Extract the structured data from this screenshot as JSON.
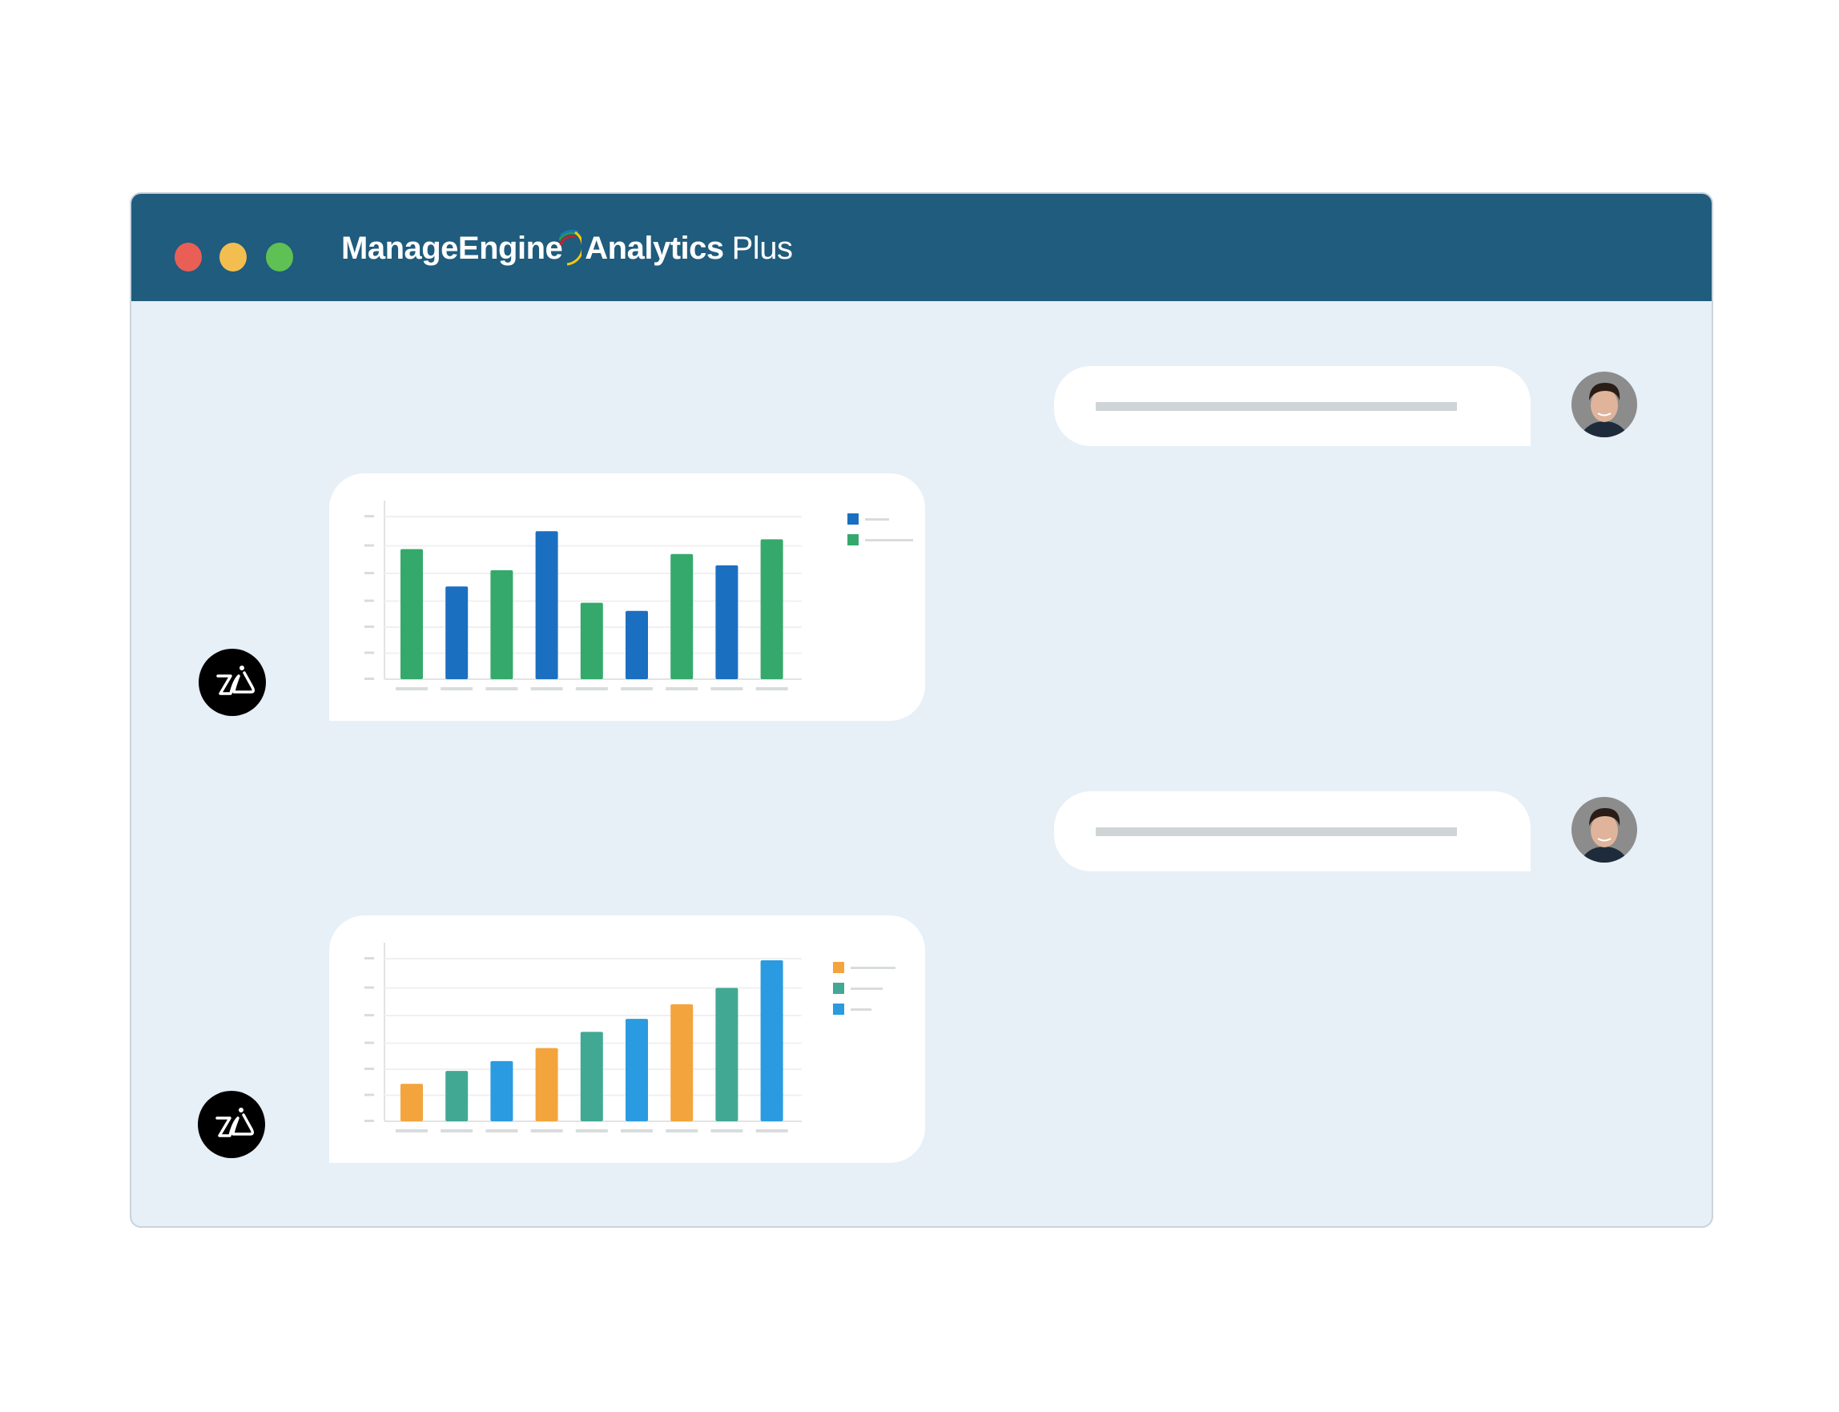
{
  "window": {
    "traffic_lights": {
      "close": "#e95f56",
      "minimize": "#f3be4f",
      "maximize": "#5fc153"
    },
    "title": {
      "brand": "ManageEngine",
      "product": "Analytics",
      "edition": "Plus"
    },
    "titlebar_color": "#1f5c7d",
    "background": "#e7eff7"
  },
  "conversation": [
    {
      "role": "user",
      "avatar": "user-photo"
    },
    {
      "role": "assistant",
      "avatar": "zia-logo",
      "chart_index": 0
    },
    {
      "role": "user",
      "avatar": "user-photo"
    },
    {
      "role": "assistant",
      "avatar": "zia-logo",
      "chart_index": 1
    }
  ],
  "chart_data": [
    {
      "type": "bar",
      "categories": [
        "",
        "",
        "",
        "",
        "",
        "",
        "",
        "",
        ""
      ],
      "values": [
        80,
        57,
        67,
        91,
        47,
        42,
        77,
        70,
        86
      ],
      "bar_colors": [
        "#34a96b",
        "#1b6fc1",
        "#34a96b",
        "#1b6fc1",
        "#34a96b",
        "#1b6fc1",
        "#34a96b",
        "#1b6fc1",
        "#34a96b"
      ],
      "legend": [
        {
          "color": "#1b6fc1"
        },
        {
          "color": "#34a96b"
        }
      ],
      "legend_placement": "top-right",
      "ylim": [
        0,
        100
      ],
      "grid": true
    },
    {
      "type": "bar",
      "categories": [
        "",
        "",
        "",
        "",
        "",
        "",
        "",
        "",
        ""
      ],
      "values": [
        23,
        31,
        37,
        45,
        55,
        63,
        72,
        82,
        99
      ],
      "bar_colors": [
        "#f4a43c",
        "#41a894",
        "#2a9be0",
        "#f4a43c",
        "#41a894",
        "#2a9be0",
        "#f4a43c",
        "#41a894",
        "#2a9be0"
      ],
      "legend": [
        {
          "color": "#f4a43c"
        },
        {
          "color": "#41a894"
        },
        {
          "color": "#2a9be0"
        }
      ],
      "legend_placement": "top-right",
      "ylim": [
        0,
        100
      ],
      "grid": true
    }
  ]
}
